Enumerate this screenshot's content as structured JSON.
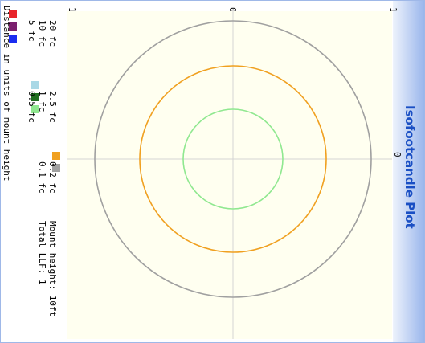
{
  "title": "Isofootcandle Plot",
  "axis_label": "Distance in units of mount height",
  "ticks": {
    "left": "1",
    "center": "0",
    "right": "1"
  },
  "mount_height": "Mount height: 10ft",
  "total_llf": "Total LLF: 1",
  "legend": [
    {
      "label": "20 fc",
      "color": "#e8242a",
      "icon": "swatch-icon"
    },
    {
      "label": "10 fc",
      "color": "#7b1f6e",
      "icon": "swatch-icon"
    },
    {
      "label": "5 fc",
      "color": "#1a2cf0",
      "icon": "swatch-icon"
    },
    {
      "label": "2.5 fc",
      "color": "#a9d8e6",
      "icon": "swatch-icon"
    },
    {
      "label": "1 fc",
      "color": "#1f6e1f",
      "icon": "swatch-icon"
    },
    {
      "label": "0.5 fc",
      "color": "#90e890",
      "icon": "swatch-icon"
    },
    {
      "label": "0.2 fc",
      "color": "#f0a020",
      "icon": "swatch-icon"
    },
    {
      "label": "0.1 fc",
      "color": "#a0a0a0",
      "icon": "swatch-icon"
    }
  ],
  "chart_data": {
    "type": "isocontour",
    "title": "Isofootcandle Plot",
    "xlabel": "Distance in units of mount height",
    "xlim": [
      -1,
      1
    ],
    "ylim": [
      -1,
      1
    ],
    "grid": "center crosshair",
    "contours": [
      {
        "name": "0.5 fc",
        "radius": 0.31,
        "color": "#90e890"
      },
      {
        "name": "0.2 fc",
        "radius": 0.58,
        "color": "#f0a020"
      },
      {
        "name": "0.1 fc",
        "radius": 0.86,
        "color": "#a0a0a0"
      }
    ]
  }
}
